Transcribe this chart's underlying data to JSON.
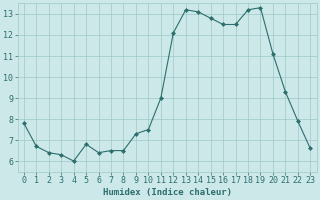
{
  "x": [
    0,
    1,
    2,
    3,
    4,
    5,
    6,
    7,
    8,
    9,
    10,
    11,
    12,
    13,
    14,
    15,
    16,
    17,
    18,
    19,
    20,
    21,
    22,
    23
  ],
  "y": [
    7.8,
    6.7,
    6.4,
    6.3,
    6.0,
    6.8,
    6.4,
    6.5,
    6.5,
    7.3,
    7.5,
    9.0,
    12.1,
    13.2,
    13.1,
    12.8,
    12.5,
    12.5,
    13.2,
    13.3,
    11.1,
    9.3,
    7.9,
    6.6
  ],
  "line_color": "#2d6e6e",
  "marker": "D",
  "marker_size": 2.0,
  "bg_color": "#cce8e8",
  "grid_color": "#9fc8c8",
  "xlabel": "Humidex (Indice chaleur)",
  "xlim": [
    -0.5,
    23.5
  ],
  "ylim": [
    5.5,
    13.5
  ],
  "yticks": [
    6,
    7,
    8,
    9,
    10,
    11,
    12,
    13
  ],
  "xticks": [
    0,
    1,
    2,
    3,
    4,
    5,
    6,
    7,
    8,
    9,
    10,
    11,
    12,
    13,
    14,
    15,
    16,
    17,
    18,
    19,
    20,
    21,
    22,
    23
  ],
  "xlabel_fontsize": 6.5,
  "tick_fontsize": 6.0,
  "axis_color": "#2d6e6e",
  "linewidth": 0.8
}
